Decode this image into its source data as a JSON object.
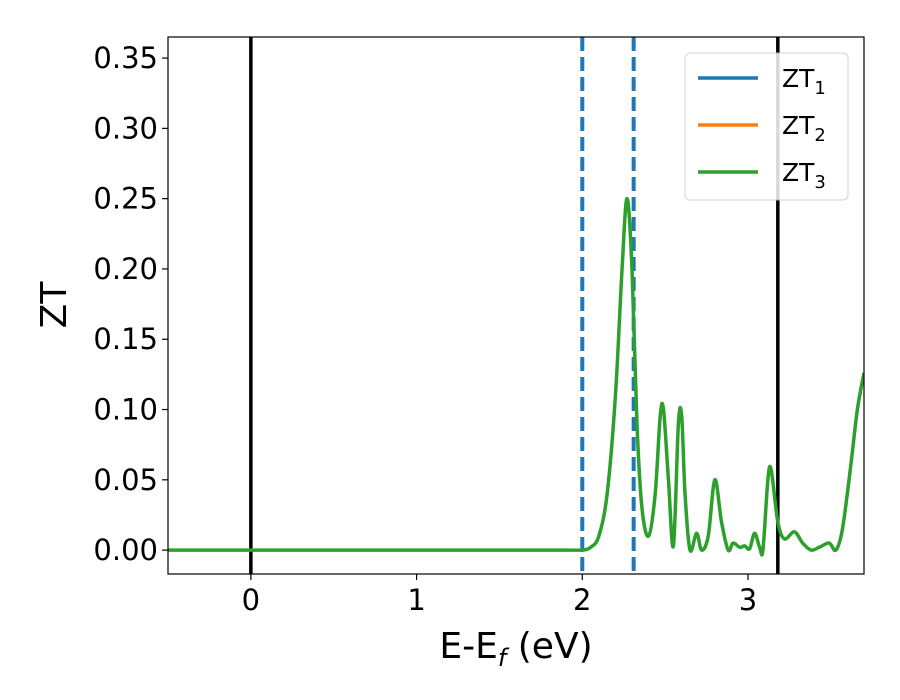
{
  "chart_data": {
    "type": "line",
    "xlabel": "E-E",
    "xlabel_sub": "f",
    "xlabel_unit": " (eV)",
    "ylabel": "ZT",
    "xlim": [
      -0.5,
      3.7
    ],
    "ylim": [
      -0.017,
      0.365
    ],
    "xticks": [
      0,
      1,
      2,
      3
    ],
    "xtick_labels": [
      "0",
      "1",
      "2",
      "3"
    ],
    "yticks": [
      0.0,
      0.05,
      0.1,
      0.15,
      0.2,
      0.25,
      0.3,
      0.35
    ],
    "ytick_labels": [
      "0.00",
      "0.05",
      "0.10",
      "0.15",
      "0.20",
      "0.25",
      "0.30",
      "0.35"
    ],
    "legend_position": "top-right",
    "vlines": [
      {
        "x": 0.0,
        "color": "#000000",
        "style": "solid"
      },
      {
        "x": 3.18,
        "color": "#000000",
        "style": "solid"
      },
      {
        "x": 2.0,
        "color": "#1f77b4",
        "style": "dashed"
      },
      {
        "x": 2.31,
        "color": "#1f77b4",
        "style": "dashed"
      }
    ],
    "series": [
      {
        "name": "ZT",
        "sub": "1",
        "color": "#1f77b4"
      },
      {
        "name": "ZT",
        "sub": "2",
        "color": "#ff7f0e"
      },
      {
        "name": "ZT",
        "sub": "3",
        "color": "#2ca02c",
        "x": [
          -0.5,
          0.0,
          1.0,
          1.9,
          2.0,
          2.05,
          2.1,
          2.15,
          2.2,
          2.24,
          2.27,
          2.3,
          2.33,
          2.36,
          2.4,
          2.44,
          2.47,
          2.49,
          2.52,
          2.55,
          2.58,
          2.6,
          2.62,
          2.65,
          2.69,
          2.72,
          2.76,
          2.8,
          2.84,
          2.88,
          2.91,
          2.95,
          2.98,
          3.01,
          3.04,
          3.07,
          3.09,
          3.12,
          3.14,
          3.18,
          3.22,
          3.28,
          3.33,
          3.38,
          3.43,
          3.49,
          3.53,
          3.57,
          3.62,
          3.66,
          3.7
        ],
        "y": [
          0.0,
          0.0,
          0.0,
          0.0,
          0.0,
          0.002,
          0.01,
          0.04,
          0.11,
          0.2,
          0.25,
          0.2,
          0.09,
          0.03,
          0.01,
          0.04,
          0.095,
          0.1,
          0.05,
          0.003,
          0.09,
          0.095,
          0.04,
          0.0,
          0.012,
          0.0,
          0.01,
          0.05,
          0.02,
          0.0,
          0.005,
          0.002,
          0.003,
          0.001,
          0.012,
          0.002,
          0.0,
          0.05,
          0.057,
          0.02,
          0.008,
          0.013,
          0.005,
          0.0,
          0.002,
          0.005,
          0.0,
          0.015,
          0.06,
          0.1,
          0.126
        ]
      }
    ]
  }
}
